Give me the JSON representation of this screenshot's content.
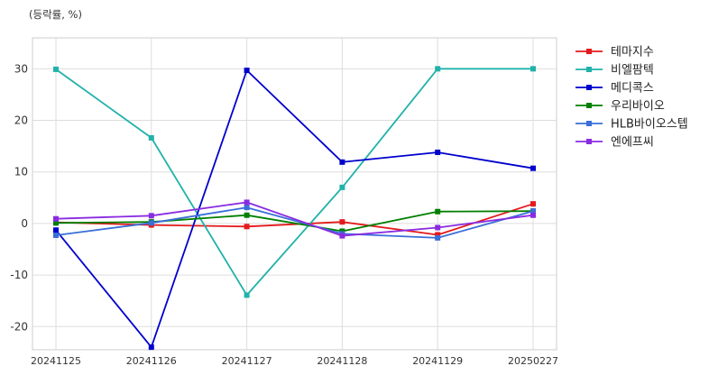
{
  "chart_data": {
    "type": "line",
    "unit_label": "(등락률, %)",
    "categories": [
      "20241125",
      "20241126",
      "20241127",
      "20241128",
      "20241129",
      "20250227"
    ],
    "ylim": [
      -24.5,
      36
    ],
    "yticks": [
      -20,
      -10,
      0,
      10,
      20,
      30
    ],
    "grid": true,
    "legend_position": "right",
    "series": [
      {
        "name": "테마지수",
        "color": "#e41a1c",
        "values": [
          0.2,
          -0.3,
          -0.6,
          0.3,
          -2.2,
          3.8
        ]
      },
      {
        "name": "비엘팜텍",
        "color": "#20b2aa",
        "values": [
          29.9,
          16.6,
          -13.9,
          7.0,
          30.0,
          30.0
        ]
      },
      {
        "name": "메디콕스",
        "color": "#0000cd",
        "values": [
          -1.3,
          -24.0,
          29.7,
          11.9,
          13.8,
          10.7
        ]
      },
      {
        "name": "우리바이오",
        "color": "#007f00",
        "values": [
          0.1,
          0.3,
          1.6,
          -1.5,
          2.3,
          2.4
        ]
      },
      {
        "name": "HLB바이오스텝",
        "color": "#3a6fd8",
        "values": [
          -2.3,
          0.1,
          3.1,
          -2.0,
          -2.8,
          2.4
        ]
      },
      {
        "name": "엔에프씨",
        "color": "#8a2be2",
        "values": [
          0.9,
          1.5,
          4.1,
          -2.4,
          -0.8,
          1.6
        ]
      }
    ]
  }
}
